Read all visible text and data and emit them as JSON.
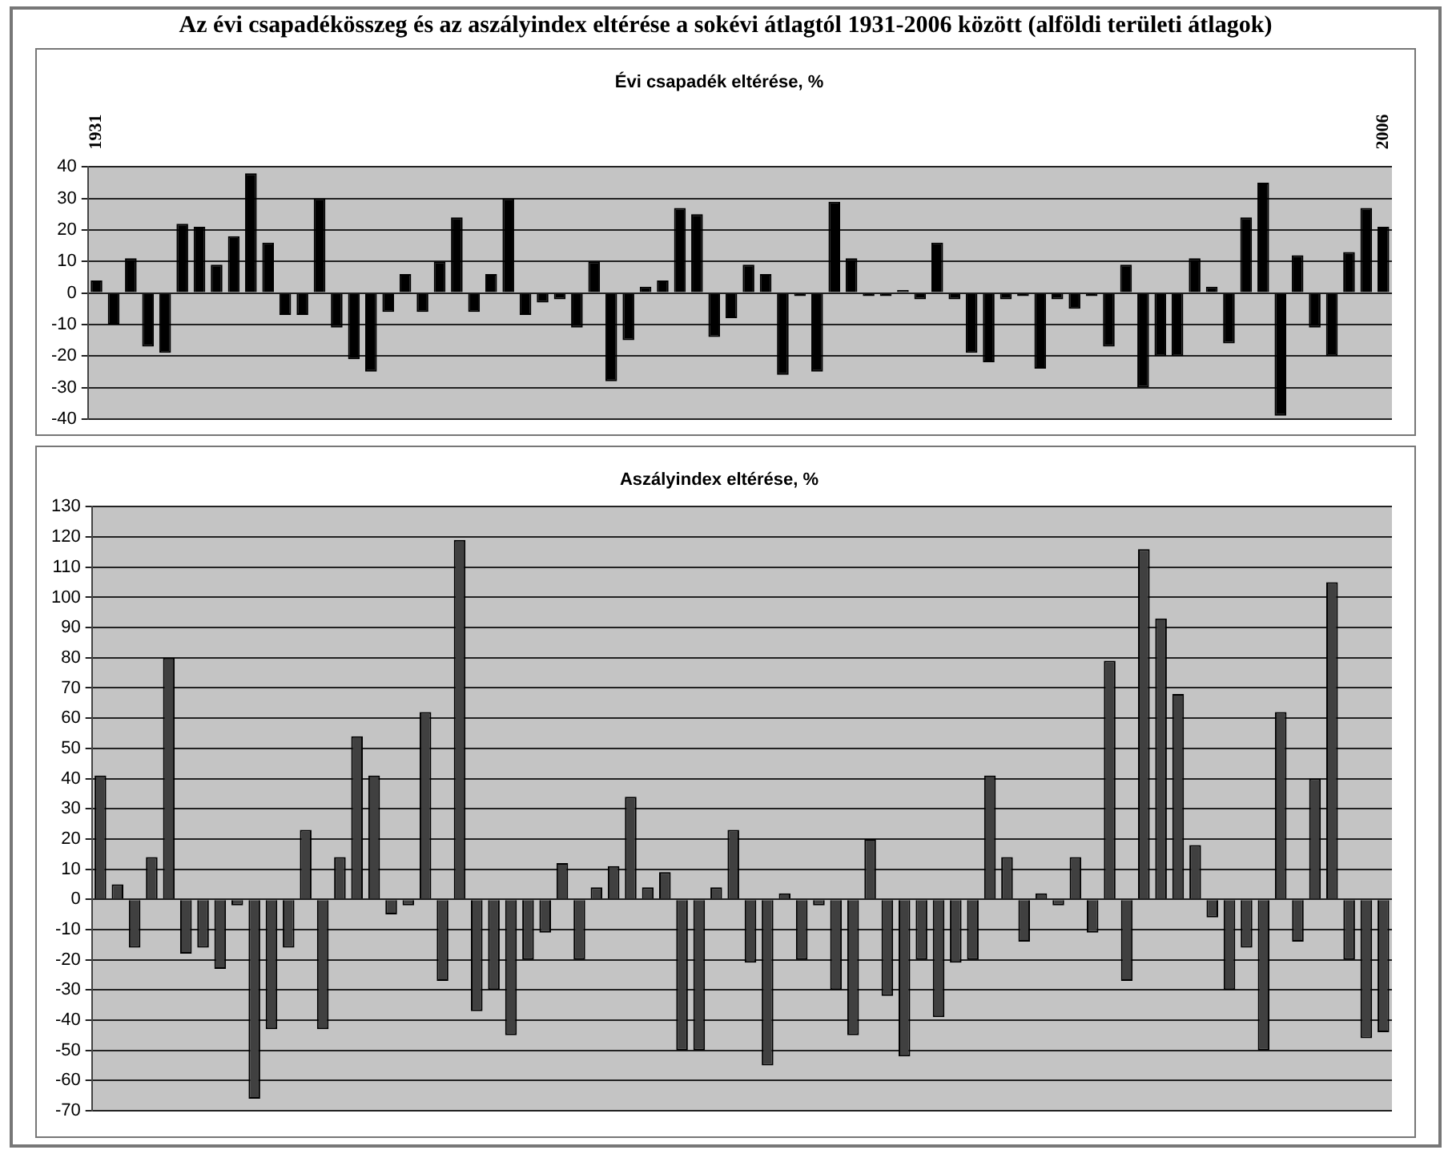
{
  "chart_data": [
    {
      "type": "bar",
      "title": "Az évi csapadékösszeg és az aszályindex eltérése a sokévi átlagtól 1931-2006 között (alföldi területi átlagok)",
      "subtitle": "Évi csapadék eltérése, %",
      "categories": [
        "1931",
        null,
        null,
        null,
        null,
        null,
        null,
        null,
        null,
        null,
        null,
        null,
        null,
        null,
        null,
        null,
        null,
        null,
        null,
        null,
        null,
        null,
        null,
        null,
        null,
        null,
        null,
        null,
        null,
        null,
        null,
        null,
        null,
        null,
        null,
        null,
        null,
        null,
        null,
        null,
        null,
        null,
        null,
        null,
        null,
        null,
        null,
        null,
        null,
        null,
        null,
        null,
        null,
        null,
        null,
        null,
        null,
        null,
        null,
        null,
        null,
        null,
        null,
        null,
        null,
        null,
        null,
        null,
        null,
        null,
        null,
        null,
        null,
        null,
        null,
        "2006"
      ],
      "values": [
        4,
        -10,
        11,
        -17,
        -19,
        22,
        21,
        9,
        18,
        38,
        16,
        -7,
        -7,
        30,
        -11,
        -21,
        -25,
        -6,
        6,
        -6,
        10,
        24,
        -6,
        6,
        30,
        -7,
        -3,
        -2,
        -11,
        10,
        -28,
        -15,
        2,
        4,
        27,
        25,
        -14,
        -8,
        9,
        6,
        -26,
        -1,
        -25,
        29,
        11,
        -1,
        -1,
        1,
        -2,
        16,
        -2,
        -19,
        -22,
        -2,
        -1,
        -24,
        -2,
        -5,
        -1,
        -17,
        9,
        -30,
        -20,
        -20,
        11,
        2,
        -16,
        24,
        35,
        -39,
        12,
        -11,
        -20,
        13,
        27,
        21
      ],
      "color": "#000000",
      "ylim": [
        -40,
        40
      ],
      "yticks": [
        -40,
        -30,
        -20,
        -10,
        0,
        10,
        20,
        30,
        40
      ],
      "grid": "y",
      "legend": false
    },
    {
      "type": "bar",
      "title": "Aszályindex eltérése, %",
      "categories": [
        null,
        null,
        null,
        null,
        null,
        null,
        null,
        null,
        null,
        null,
        null,
        null,
        null,
        null,
        null,
        null,
        null,
        null,
        null,
        null,
        null,
        null,
        null,
        null,
        null,
        null,
        null,
        null,
        null,
        null,
        null,
        null,
        null,
        null,
        null,
        null,
        null,
        null,
        null,
        null,
        null,
        null,
        null,
        null,
        null,
        null,
        null,
        null,
        null,
        null,
        null,
        null,
        null,
        null,
        null,
        null,
        null,
        null,
        null,
        null,
        null,
        null,
        null,
        null,
        null,
        null,
        null,
        null,
        null,
        null,
        null,
        null,
        null,
        null,
        null,
        null
      ],
      "values": [
        41,
        5,
        -16,
        14,
        80,
        -18,
        -16,
        -23,
        -2,
        -66,
        -43,
        -16,
        23,
        -43,
        14,
        54,
        41,
        -5,
        -2,
        62,
        -27,
        119,
        -37,
        -30,
        -45,
        -20,
        -11,
        12,
        -20,
        4,
        11,
        34,
        4,
        9,
        -50,
        -50,
        4,
        23,
        -21,
        -55,
        2,
        -20,
        -2,
        -30,
        -45,
        20,
        -32,
        -52,
        -20,
        -39,
        -21,
        -20,
        41,
        14,
        -14,
        2,
        -2,
        14,
        -11,
        79,
        -27,
        116,
        93,
        68,
        18,
        -6,
        -30,
        -16,
        -50,
        62,
        -14,
        40,
        105,
        -20,
        -46,
        -44
      ],
      "color": "#404040",
      "ylim": [
        -70,
        130
      ],
      "yticks": [
        -70,
        -60,
        -50,
        -40,
        -30,
        -20,
        -10,
        0,
        10,
        20,
        30,
        40,
        50,
        60,
        70,
        80,
        90,
        100,
        110,
        120,
        130
      ],
      "grid": "y",
      "tick_labels": "y",
      "legend": false
    }
  ]
}
